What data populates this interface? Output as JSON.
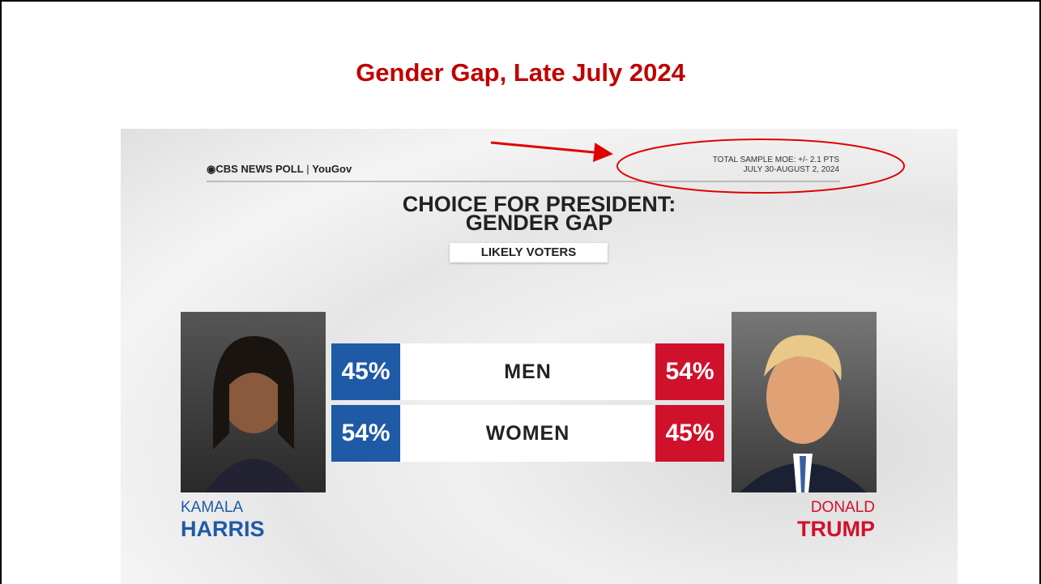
{
  "title": "Gender Gap, Late July 2024",
  "graphic": {
    "brand": "CBS NEWS POLL",
    "partner": "YouGov",
    "moe": "TOTAL SAMPLE MOE: +/- 2.1 PTS",
    "dates": "JULY 30-AUGUST 2, 2024",
    "heading": [
      "CHOICE FOR PRESIDENT:",
      "GENDER GAP"
    ],
    "subtitle": "LIKELY VOTERS",
    "candidates": [
      {
        "first": "KAMALA",
        "last": "HARRIS",
        "color": "#1f5aa6"
      },
      {
        "first": "DONALD",
        "last": "TRUMP",
        "color": "#d0112b"
      }
    ],
    "rows": [
      {
        "label": "MEN",
        "harris": "45%",
        "trump": "54%"
      },
      {
        "label": "WOMEN",
        "harris": "54%",
        "trump": "45%"
      }
    ]
  }
}
